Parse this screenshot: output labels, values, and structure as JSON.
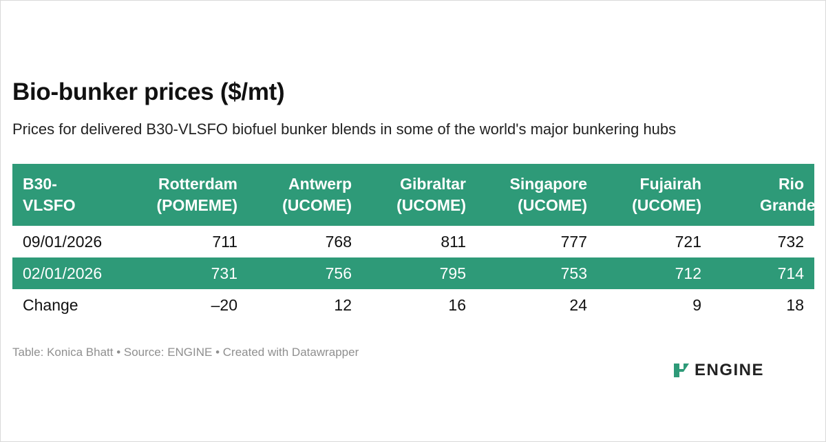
{
  "title": "Bio-bunker prices ($/mt)",
  "subtitle": "Prices for delivered B30-VLSFO biofuel bunker blends in some of the world's major bunkering hubs",
  "footer": "Table: Konica Bhatt • Source: ENGINE • Created with Datawrapper",
  "logo": {
    "icon": "engine-logo-icon",
    "text": "ENGINE"
  },
  "colors": {
    "header_bg": "#2e9a78",
    "alt_row_bg": "#2e9a78",
    "header_text": "#ffffff",
    "logo_green": "#2e9a78"
  },
  "chart_data": {
    "type": "table",
    "columns": [
      "B30-VLSFO",
      "Rotterdam (POMEME)",
      "Antwerp (UCOME)",
      "Gibraltar (UCOME)",
      "Singapore (UCOME)",
      "Fujairah (UCOME)",
      "Rio Grande"
    ],
    "rows": [
      [
        "09/01/2026",
        "711",
        "768",
        "811",
        "777",
        "721",
        "732"
      ],
      [
        "02/01/2026",
        "731",
        "756",
        "795",
        "753",
        "712",
        "714"
      ],
      [
        "Change",
        "–20",
        "12",
        "16",
        "24",
        "9",
        "18"
      ]
    ],
    "header_fill": "#2e9a78",
    "striped_rows": [
      1
    ]
  }
}
